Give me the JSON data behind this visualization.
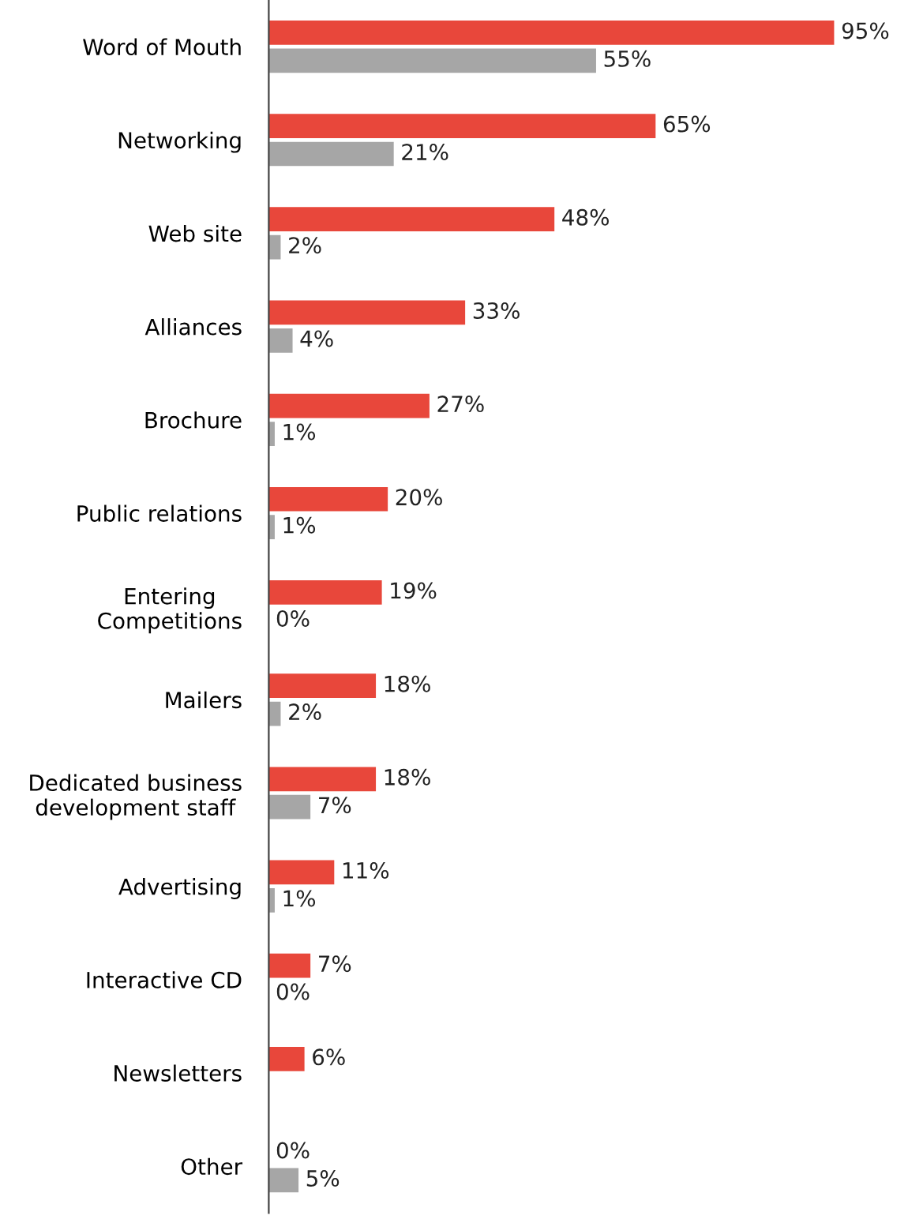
{
  "chart_data": {
    "type": "bar",
    "orientation": "horizontal",
    "categories": [
      "Word of Mouth",
      "Networking",
      "Web site",
      "Alliances",
      "Brochure",
      "Public relations",
      "Entering\nCompetitions",
      "Mailers",
      "Dedicated business\ndevelopment staff",
      "Advertising",
      "Interactive CD",
      "Newsletters",
      "Other"
    ],
    "series": [
      {
        "color": "#e8473b",
        "values": [
          95,
          65,
          48,
          33,
          27,
          20,
          19,
          18,
          18,
          11,
          7,
          6,
          0
        ],
        "value_labels": [
          "95%",
          "65%",
          "48%",
          "33%",
          "27%",
          "20%",
          "19%",
          "18%",
          "18%",
          "11%",
          "7%",
          "6%",
          "0%"
        ]
      },
      {
        "color": "#a6a6a6",
        "values": [
          55,
          21,
          2,
          4,
          1,
          1,
          0,
          2,
          7,
          1,
          0,
          null,
          5
        ],
        "value_labels": [
          "55%",
          "21%",
          "2%",
          "4%",
          "1%",
          "1%",
          "0%",
          "2%",
          "7%",
          "1%",
          "0%",
          null,
          "5%"
        ]
      }
    ],
    "legend": false,
    "grid": false
  }
}
